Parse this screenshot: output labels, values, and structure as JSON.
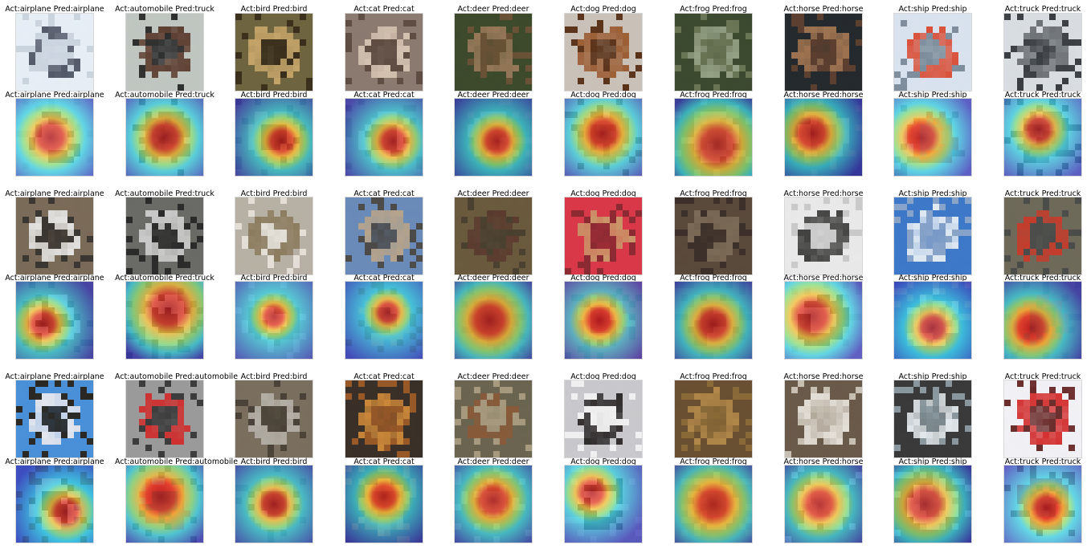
{
  "classes": [
    "airplane",
    "automobile",
    "bird",
    "cat",
    "deer",
    "dog",
    "frog",
    "horse",
    "ship",
    "truck"
  ],
  "groups": [
    {
      "samples": [
        {
          "actual": "airplane",
          "predicted": "airplane",
          "caption": "Act:airplane  Pred:airplane"
        },
        {
          "actual": "automobile",
          "predicted": "truck",
          "caption": "Act:automobile  Pred:truck"
        },
        {
          "actual": "bird",
          "predicted": "bird",
          "caption": "Act:bird  Pred:bird"
        },
        {
          "actual": "cat",
          "predicted": "cat",
          "caption": "Act:cat  Pred:cat"
        },
        {
          "actual": "deer",
          "predicted": "deer",
          "caption": "Act:deer  Pred:deer"
        },
        {
          "actual": "dog",
          "predicted": "dog",
          "caption": "Act:dog  Pred:dog"
        },
        {
          "actual": "frog",
          "predicted": "frog",
          "caption": "Act:frog  Pred:frog"
        },
        {
          "actual": "horse",
          "predicted": "horse",
          "caption": "Act:horse  Pred:horse"
        },
        {
          "actual": "ship",
          "predicted": "ship",
          "caption": "Act:ship  Pred:ship"
        },
        {
          "actual": "truck",
          "predicted": "truck",
          "caption": "Act:truck  Pred:truck"
        }
      ]
    },
    {
      "samples": [
        {
          "actual": "airplane",
          "predicted": "airplane",
          "caption": "Act:airplane  Pred:airplane"
        },
        {
          "actual": "automobile",
          "predicted": "truck",
          "caption": "Act:automobile  Pred:truck"
        },
        {
          "actual": "bird",
          "predicted": "bird",
          "caption": "Act:bird  Pred:bird"
        },
        {
          "actual": "cat",
          "predicted": "cat",
          "caption": "Act:cat  Pred:cat"
        },
        {
          "actual": "deer",
          "predicted": "deer",
          "caption": "Act:deer  Pred:deer"
        },
        {
          "actual": "dog",
          "predicted": "dog",
          "caption": "Act:dog  Pred:dog"
        },
        {
          "actual": "frog",
          "predicted": "frog",
          "caption": "Act:frog  Pred:frog"
        },
        {
          "actual": "horse",
          "predicted": "horse",
          "caption": "Act:horse  Pred:horse"
        },
        {
          "actual": "ship",
          "predicted": "ship",
          "caption": "Act:ship  Pred:ship"
        },
        {
          "actual": "truck",
          "predicted": "truck",
          "caption": "Act:truck  Pred:truck"
        }
      ]
    },
    {
      "samples": [
        {
          "actual": "airplane",
          "predicted": "airplane",
          "caption": "Act:airplane  Pred:airplane"
        },
        {
          "actual": "automobile",
          "predicted": "automobile",
          "caption": "Act:automobile  Pred:automobile"
        },
        {
          "actual": "bird",
          "predicted": "bird",
          "caption": "Act:bird  Pred:bird"
        },
        {
          "actual": "cat",
          "predicted": "cat",
          "caption": "Act:cat  Pred:cat"
        },
        {
          "actual": "deer",
          "predicted": "deer",
          "caption": "Act:deer  Pred:deer"
        },
        {
          "actual": "dog",
          "predicted": "dog",
          "caption": "Act:dog  Pred:dog"
        },
        {
          "actual": "frog",
          "predicted": "frog",
          "caption": "Act:frog  Pred:frog"
        },
        {
          "actual": "horse",
          "predicted": "horse",
          "caption": "Act:horse  Pred:horse"
        },
        {
          "actual": "ship",
          "predicted": "ship",
          "caption": "Act:ship  Pred:ship"
        },
        {
          "actual": "truck",
          "predicted": "truck",
          "caption": "Act:truck  Pred:truck"
        }
      ]
    }
  ],
  "image_palettes": [
    [
      "#e6edf5",
      "#4a5060",
      "#c9d3de"
    ],
    [
      "#bfc5c0",
      "#5a3a2c",
      "#2e2e2e"
    ],
    [
      "#6e6540",
      "#c8a66a",
      "#3a2f1c"
    ],
    [
      "#8a7a70",
      "#d8c6b4",
      "#5e4c42"
    ],
    [
      "#3d4a2c",
      "#9a7a5a",
      "#6a5236"
    ],
    [
      "#c9c1b8",
      "#9a5a30",
      "#5a3218"
    ],
    [
      "#3c4a30",
      "#98a488",
      "#6a7656"
    ],
    [
      "#252a2e",
      "#a37652",
      "#5e4030"
    ],
    [
      "#d8e2ee",
      "#d84a32",
      "#7c8c9a"
    ],
    [
      "#d8dce0",
      "#6a6e72",
      "#3a3e42"
    ]
  ],
  "image_palettes_2": [
    [
      "#7a6a58",
      "#e8e8e8",
      "#3a3632"
    ],
    [
      "#6a6a66",
      "#cfcfcf",
      "#2a2a2a"
    ],
    [
      "#b7b0a4",
      "#8a7a5c",
      "#e4e0d8"
    ],
    [
      "#6a8ab8",
      "#b8a48a",
      "#4c4a48"
    ],
    [
      "#6a5a3e",
      "#5a3a2e",
      "#4a4030"
    ],
    [
      "#d83848",
      "#c99a6a",
      "#8a2a32"
    ],
    [
      "#5a4a3c",
      "#7c6c58",
      "#3c302a"
    ],
    [
      "#e8e8e8",
      "#3a3a38",
      "#c8c8c8"
    ],
    [
      "#3e78c8",
      "#e8eef4",
      "#8aa4c8"
    ],
    [
      "#6e6a5a",
      "#c83a2a",
      "#4a4c4a"
    ]
  ],
  "image_palettes_3": [
    [
      "#4a90d8",
      "#e8e8ee",
      "#2a2620"
    ],
    [
      "#9a9a9a",
      "#d22a2a",
      "#3a3a3a"
    ],
    [
      "#7a6e5e",
      "#b8b4ac",
      "#4a4238"
    ],
    [
      "#3a3028",
      "#d08a3a",
      "#9a5a28"
    ],
    [
      "#6a6450",
      "#8a5a38",
      "#a89a7e"
    ],
    [
      "#c8c8cc",
      "#2a2626",
      "#f0f0f0"
    ],
    [
      "#6a5032",
      "#b48a4a",
      "#8a6a38"
    ],
    [
      "#6a5a4a",
      "#e8e4dc",
      "#c8c0b4"
    ],
    [
      "#3a3a3a",
      "#e8eef2",
      "#8a9aa0"
    ],
    [
      "#f0f0f4",
      "#d22a2a",
      "#6a2a2a"
    ]
  ],
  "heat_hotspots": [
    [
      [
        0.45,
        0.5,
        0.35
      ],
      [
        0.5,
        0.5,
        0.35
      ],
      [
        0.6,
        0.55,
        0.3
      ],
      [
        0.62,
        0.55,
        0.3
      ],
      [
        0.55,
        0.55,
        0.3
      ],
      [
        0.5,
        0.45,
        0.35
      ],
      [
        0.55,
        0.6,
        0.45
      ],
      [
        0.35,
        0.45,
        0.35
      ],
      [
        0.35,
        0.5,
        0.35
      ],
      [
        0.45,
        0.4,
        0.3
      ]
    ],
    [
      [
        0.35,
        0.55,
        0.3
      ],
      [
        0.55,
        0.35,
        0.45
      ],
      [
        0.5,
        0.45,
        0.25
      ],
      [
        0.55,
        0.4,
        0.25
      ],
      [
        0.45,
        0.5,
        0.4
      ],
      [
        0.45,
        0.5,
        0.3
      ],
      [
        0.5,
        0.55,
        0.35
      ],
      [
        0.35,
        0.45,
        0.4
      ],
      [
        0.5,
        0.6,
        0.3
      ],
      [
        0.35,
        0.6,
        0.35
      ]
    ],
    [
      [
        0.65,
        0.6,
        0.3
      ],
      [
        0.45,
        0.4,
        0.4
      ],
      [
        0.5,
        0.5,
        0.3
      ],
      [
        0.5,
        0.4,
        0.3
      ],
      [
        0.5,
        0.45,
        0.35
      ],
      [
        0.35,
        0.35,
        0.3
      ],
      [
        0.5,
        0.5,
        0.4
      ],
      [
        0.45,
        0.5,
        0.35
      ],
      [
        0.4,
        0.5,
        0.4
      ],
      [
        0.55,
        0.55,
        0.3
      ]
    ]
  ]
}
